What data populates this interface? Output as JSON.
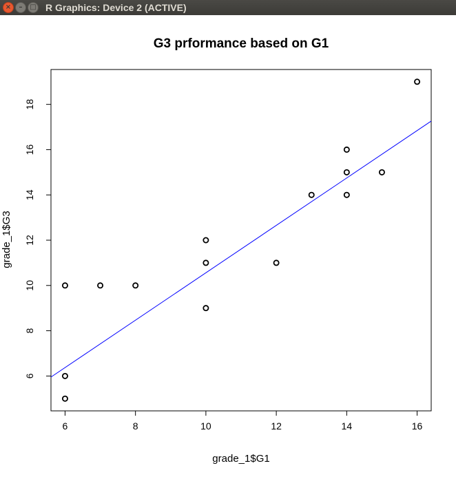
{
  "window": {
    "title": "R Graphics: Device 2 (ACTIVE)",
    "close_icon": "close-icon",
    "minimize_icon": "minimize-icon",
    "maximize_icon": "maximize-icon"
  },
  "chart_data": {
    "type": "scatter",
    "title": "G3 prformance based on G1",
    "xlabel": "grade_1$G1",
    "ylabel": "grade_1$G3",
    "xlim": [
      5.6,
      16.4
    ],
    "ylim": [
      4.46,
      19.54
    ],
    "xticks": [
      6,
      8,
      10,
      12,
      14,
      16
    ],
    "yticks": [
      6,
      8,
      10,
      12,
      14,
      16,
      18
    ],
    "points": [
      {
        "x": 6,
        "y": 5
      },
      {
        "x": 6,
        "y": 6
      },
      {
        "x": 6,
        "y": 10
      },
      {
        "x": 7,
        "y": 10
      },
      {
        "x": 8,
        "y": 10
      },
      {
        "x": 10,
        "y": 9
      },
      {
        "x": 10,
        "y": 11
      },
      {
        "x": 10,
        "y": 12
      },
      {
        "x": 12,
        "y": 11
      },
      {
        "x": 13,
        "y": 14
      },
      {
        "x": 14,
        "y": 14
      },
      {
        "x": 14,
        "y": 15
      },
      {
        "x": 14,
        "y": 16
      },
      {
        "x": 15,
        "y": 15
      },
      {
        "x": 16,
        "y": 19
      }
    ],
    "regression_line": {
      "intercept": 0.09,
      "slope": 1.047,
      "color": "#0000ff"
    },
    "point_color": "#000000",
    "grid": false
  }
}
